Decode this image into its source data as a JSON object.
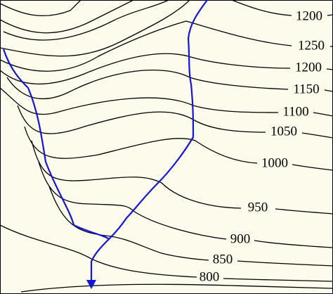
{
  "contour_labels": [
    "1200",
    "1250",
    "1200",
    "1150",
    "1100",
    "1050",
    "1000",
    "950",
    "900",
    "850",
    "800"
  ]
}
